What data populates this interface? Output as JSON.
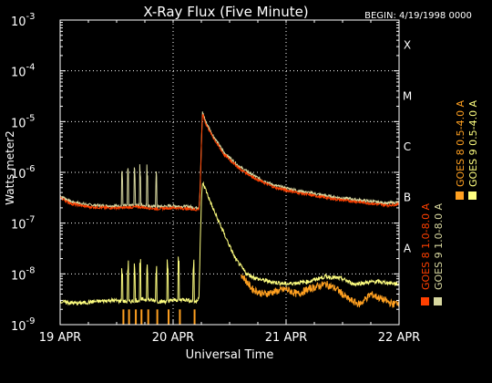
{
  "chart_data": {
    "type": "line",
    "title": "X-Ray Flux (Five Minute)",
    "begin_label": "BEGIN: 4/19/1998 0000",
    "xlabel": "Universal Time",
    "ylabel": "Watts meter",
    "ylabel_exp": "2",
    "y_scale": "log",
    "ylim": [
      1e-09,
      0.001
    ],
    "y_ticks": [
      {
        "exp": -9,
        "label": "10",
        "sup": "-9"
      },
      {
        "exp": -8,
        "label": "10",
        "sup": "-8"
      },
      {
        "exp": -7,
        "label": "10",
        "sup": "-7"
      },
      {
        "exp": -6,
        "label": "10",
        "sup": "-6"
      },
      {
        "exp": -5,
        "label": "10",
        "sup": "-5"
      },
      {
        "exp": -4,
        "label": "10",
        "sup": "-4"
      },
      {
        "exp": -3,
        "label": "10",
        "sup": "-3"
      }
    ],
    "x_range_days": [
      0,
      3
    ],
    "x_ticks": [
      {
        "day": 0,
        "label": "19 APR"
      },
      {
        "day": 1,
        "label": "20 APR"
      },
      {
        "day": 2,
        "label": "21 APR"
      },
      {
        "day": 3,
        "label": "22 APR"
      }
    ],
    "flare_classes": [
      {
        "exp": -7,
        "label": "B"
      },
      {
        "exp": -6,
        "label": "C"
      },
      {
        "exp": -5,
        "label": "M"
      },
      {
        "exp": -4,
        "label": "X"
      },
      {
        "exp": -8,
        "label": "A"
      }
    ],
    "grid": true,
    "legend_position": "right",
    "series": [
      {
        "name": "GOES 8  1.0-8.0 A",
        "color": "#ff4000",
        "channel": "long"
      },
      {
        "name": "GOES 8  0.5-4.0 A",
        "color": "#ffa020",
        "channel": "short"
      },
      {
        "name": "GOES 9  1.0-8.0 A",
        "color": "#d8d8a0",
        "channel": "long"
      },
      {
        "name": "GOES 9  0.5-4.0 A",
        "color": "#ffff80",
        "channel": "short"
      }
    ],
    "long_channel_points": [
      [
        0.0,
        -6.5
      ],
      [
        0.1,
        -6.62
      ],
      [
        0.25,
        -6.68
      ],
      [
        0.4,
        -6.7
      ],
      [
        0.55,
        -6.7
      ],
      [
        0.7,
        -6.68
      ],
      [
        0.85,
        -6.72
      ],
      [
        1.0,
        -6.7
      ],
      [
        1.15,
        -6.72
      ],
      [
        1.2,
        -6.74
      ],
      [
        1.23,
        -6.72
      ],
      [
        1.24,
        -6.3
      ],
      [
        1.25,
        -5.5
      ],
      [
        1.26,
        -4.85
      ],
      [
        1.29,
        -5.05
      ],
      [
        1.35,
        -5.3
      ],
      [
        1.45,
        -5.65
      ],
      [
        1.6,
        -5.95
      ],
      [
        1.75,
        -6.15
      ],
      [
        1.9,
        -6.3
      ],
      [
        2.1,
        -6.4
      ],
      [
        2.4,
        -6.52
      ],
      [
        2.7,
        -6.6
      ],
      [
        2.9,
        -6.65
      ],
      [
        3.0,
        -6.63
      ]
    ],
    "short_channel_points": [
      [
        0.0,
        -8.55
      ],
      [
        0.15,
        -8.58
      ],
      [
        0.3,
        -8.55
      ],
      [
        0.45,
        -8.52
      ],
      [
        0.6,
        -8.55
      ],
      [
        0.75,
        -8.5
      ],
      [
        0.9,
        -8.55
      ],
      [
        1.0,
        -8.52
      ],
      [
        1.1,
        -8.5
      ],
      [
        1.2,
        -8.55
      ],
      [
        1.23,
        -8.45
      ],
      [
        1.24,
        -7.4
      ],
      [
        1.25,
        -6.6
      ],
      [
        1.26,
        -6.2
      ],
      [
        1.29,
        -6.35
      ],
      [
        1.35,
        -6.7
      ],
      [
        1.45,
        -7.2
      ],
      [
        1.55,
        -7.7
      ],
      [
        1.65,
        -8.0
      ],
      [
        1.75,
        -8.1
      ],
      [
        1.85,
        -8.15
      ],
      [
        2.0,
        -8.2
      ],
      [
        2.2,
        -8.15
      ],
      [
        2.35,
        -8.05
      ],
      [
        2.5,
        -8.1
      ],
      [
        2.6,
        -8.2
      ],
      [
        2.8,
        -8.15
      ],
      [
        3.0,
        -8.2
      ]
    ],
    "short_channel_goes8_points": [
      [
        1.6,
        -8.0
      ],
      [
        1.7,
        -8.3
      ],
      [
        1.8,
        -8.4
      ],
      [
        1.9,
        -8.35
      ],
      [
        2.0,
        -8.3
      ],
      [
        2.1,
        -8.4
      ],
      [
        2.2,
        -8.3
      ],
      [
        2.35,
        -8.2
      ],
      [
        2.45,
        -8.3
      ],
      [
        2.55,
        -8.5
      ],
      [
        2.65,
        -8.6
      ],
      [
        2.75,
        -8.4
      ],
      [
        2.85,
        -8.5
      ],
      [
        2.95,
        -8.6
      ],
      [
        3.0,
        -8.55
      ]
    ],
    "spike_days": [
      0.55,
      0.6,
      0.66,
      0.71,
      0.77,
      0.85,
      0.95,
      1.05,
      1.18
    ]
  }
}
